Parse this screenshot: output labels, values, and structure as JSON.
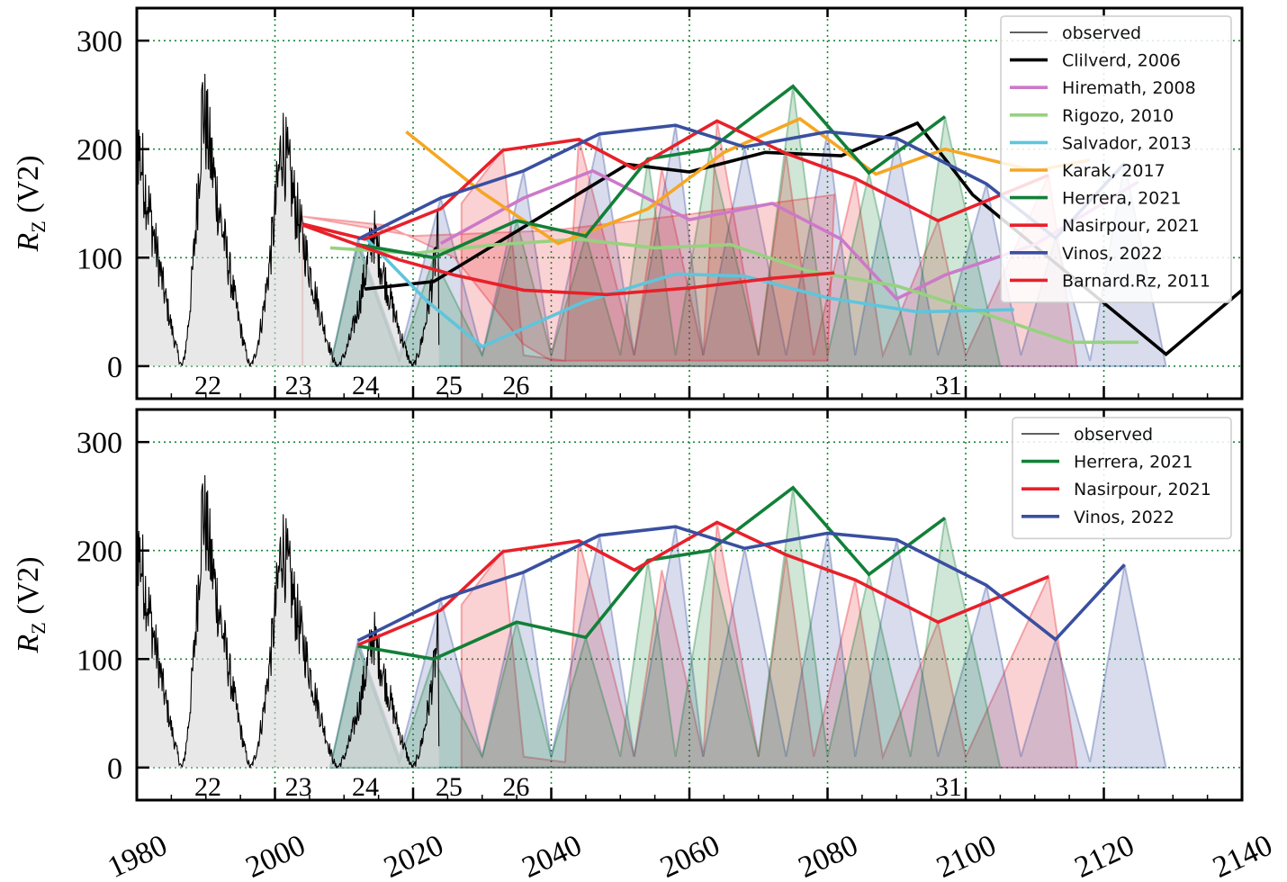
{
  "chart_data": [
    {
      "type": "line",
      "panel": "top",
      "ylabel": "R_Z (V2)",
      "ylabel_main": "R",
      "ylabel_sub": "Z",
      "ylabel_rest": " (V2)",
      "xlim": [
        1980,
        2140
      ],
      "ylim": [
        -30,
        330
      ],
      "x_ticks": [
        "1980",
        "2000",
        "2020",
        "2040",
        "2060",
        "2080",
        "2100",
        "2120",
        "2140"
      ],
      "y_ticks": [
        "0",
        "100",
        "200",
        "300"
      ],
      "grid": true,
      "legend_position": "top-right",
      "cycle_labels": [
        {
          "text": "22",
          "x": 1990.3
        },
        {
          "text": "23",
          "x": 2003.4
        },
        {
          "text": "24",
          "x": 2013.1
        },
        {
          "text": "25",
          "x": 2025.2
        },
        {
          "text": "26",
          "x": 2034.9
        },
        {
          "text": "31",
          "x": 2097.5
        }
      ],
      "observed_peaks": [
        {
          "start": 1976.3,
          "peak": 1979.9,
          "end": 1986.5,
          "value": 255
        },
        {
          "start": 1986.5,
          "peak": 1989.5,
          "end": 1996.4,
          "value": 285
        },
        {
          "start": 1996.4,
          "peak": 2001.0,
          "end": 2008.9,
          "value": 245
        },
        {
          "start": 2008.9,
          "peak": 2014.2,
          "end": 2019.9,
          "value": 146
        },
        {
          "start": 2019.9,
          "peak": 2023.6,
          "end": 2023.8,
          "value": 140
        }
      ],
      "series": [
        {
          "name": "observed",
          "color": "#000000",
          "style": "thin",
          "x": [],
          "values": []
        },
        {
          "name": "Clilverd, 2006",
          "color": "#000000",
          "x": [
            2013,
            2023,
            2051,
            2060,
            2071,
            2082,
            2093,
            2101,
            2129,
            2140
          ],
          "values": [
            71,
            78,
            186,
            179,
            197,
            194,
            224,
            158,
            11,
            70
          ]
        },
        {
          "name": "Hiremath, 2008",
          "color": "#cc79c8",
          "x": [
            2024,
            2036,
            2046,
            2060,
            2072,
            2082,
            2090,
            2097,
            2110,
            2125
          ],
          "values": [
            113,
            155,
            180,
            135,
            150,
            117,
            62,
            84,
            112,
            170
          ]
        },
        {
          "name": "Rigozo, 2010",
          "color": "#98d17f",
          "x": [
            2008,
            2020,
            2032,
            2044,
            2055,
            2066,
            2077,
            2090,
            2102,
            2115,
            2125
          ],
          "values": [
            109,
            104,
            112,
            117,
            109,
            112,
            88,
            74,
            50,
            22,
            22
          ]
        },
        {
          "name": "Salvador, 2013",
          "color": "#5ec5dc",
          "x": [
            2013,
            2022,
            2030,
            2045,
            2058,
            2068,
            2080,
            2093,
            2107
          ],
          "values": [
            119,
            60,
            18,
            60,
            85,
            83,
            63,
            50,
            52
          ]
        },
        {
          "name": "Karak, 2017",
          "color": "#f5a623",
          "x": [
            2019,
            2030,
            2041,
            2054,
            2065,
            2076,
            2087,
            2097,
            2110,
            2118
          ],
          "values": [
            216,
            160,
            113,
            145,
            197,
            228,
            177,
            200,
            180,
            190
          ]
        },
        {
          "name": "Herrera, 2021",
          "color": "#128038",
          "x": [
            2012,
            2023,
            2035,
            2045,
            2054,
            2063,
            2075,
            2086,
            2097
          ],
          "values": [
            112,
            100,
            134,
            120,
            191,
            200,
            258,
            178,
            230
          ]
        },
        {
          "name": "Nasirpour, 2021",
          "color": "#e8202a",
          "x": [
            2004,
            2013,
            2024,
            2033,
            2044,
            2052,
            2064,
            2074,
            2084,
            2096,
            2112
          ],
          "values": [
            131,
            117,
            145,
            199,
            209,
            182,
            226,
            196,
            173,
            134,
            176
          ]
        },
        {
          "name": "Vinos, 2022",
          "color": "#3a4fa0",
          "x": [
            2012,
            2024,
            2036,
            2047,
            2058,
            2068,
            2080,
            2090,
            2103,
            2113,
            2123
          ],
          "values": [
            117,
            155,
            180,
            214,
            222,
            202,
            216,
            210,
            168,
            118,
            187
          ]
        },
        {
          "name": "Barnard.Rz, 2011",
          "color": "#e8202a",
          "x": [
            2004,
            2018,
            2026,
            2036,
            2048,
            2060,
            2072,
            2081
          ],
          "values": [
            130,
            98,
            84,
            70,
            66,
            72,
            81,
            86
          ]
        }
      ]
    },
    {
      "type": "line",
      "panel": "bottom",
      "ylabel": "R_Z (V2)",
      "ylabel_main": "R",
      "ylabel_sub": "Z",
      "ylabel_rest": " (V2)",
      "xlim": [
        1980,
        2140
      ],
      "ylim": [
        -30,
        330
      ],
      "x_ticks": [
        "1980",
        "2000",
        "2020",
        "2040",
        "2060",
        "2080",
        "2100",
        "2120",
        "2140"
      ],
      "y_ticks": [
        "0",
        "100",
        "200",
        "300"
      ],
      "grid": true,
      "legend_position": "top-right",
      "cycle_labels": [
        {
          "text": "22",
          "x": 1990.3
        },
        {
          "text": "23",
          "x": 2003.4
        },
        {
          "text": "24",
          "x": 2013.1
        },
        {
          "text": "25",
          "x": 2025.2
        },
        {
          "text": "26",
          "x": 2034.9
        },
        {
          "text": "31",
          "x": 2097.5
        }
      ],
      "observed_peaks": [
        {
          "start": 1976.3,
          "peak": 1979.9,
          "end": 1986.5,
          "value": 255
        },
        {
          "start": 1986.5,
          "peak": 1989.5,
          "end": 1996.4,
          "value": 285
        },
        {
          "start": 1996.4,
          "peak": 2001.0,
          "end": 2008.9,
          "value": 245
        },
        {
          "start": 2008.9,
          "peak": 2014.2,
          "end": 2019.9,
          "value": 146
        },
        {
          "start": 2019.9,
          "peak": 2023.6,
          "end": 2023.8,
          "value": 140
        }
      ],
      "series": [
        {
          "name": "observed",
          "color": "#000000",
          "style": "thin",
          "x": [],
          "values": []
        },
        {
          "name": "Herrera, 2021",
          "color": "#128038",
          "x": [
            2012,
            2023,
            2035,
            2045,
            2054,
            2063,
            2075,
            2086,
            2097
          ],
          "values": [
            112,
            100,
            134,
            120,
            191,
            200,
            258,
            178,
            230
          ]
        },
        {
          "name": "Nasirpour, 2021",
          "color": "#e8202a",
          "x": [
            2012,
            2024,
            2033,
            2044,
            2052,
            2064,
            2074,
            2084,
            2096,
            2112
          ],
          "values": [
            113,
            145,
            199,
            209,
            182,
            226,
            196,
            173,
            134,
            176
          ]
        },
        {
          "name": "Vinos, 2022",
          "color": "#3a4fa0",
          "x": [
            2012,
            2024,
            2036,
            2047,
            2058,
            2068,
            2080,
            2090,
            2103,
            2113,
            2123
          ],
          "values": [
            117,
            155,
            180,
            214,
            222,
            202,
            216,
            210,
            168,
            118,
            187
          ]
        }
      ]
    }
  ]
}
